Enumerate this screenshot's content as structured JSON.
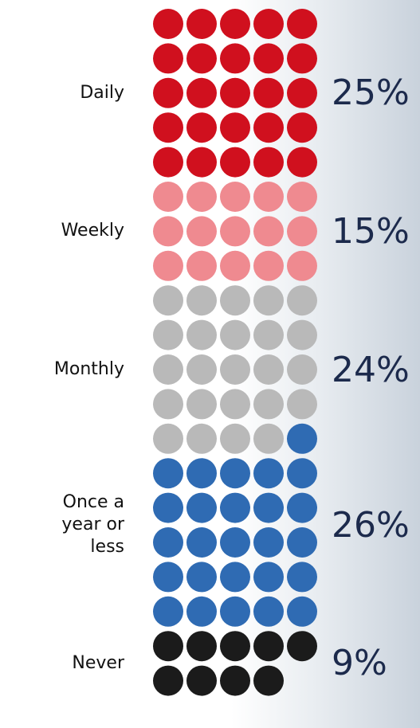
{
  "chart_data": {
    "type": "waffle",
    "categories": [
      "Daily",
      "Weekly",
      "Monthly",
      "Once a year or less",
      "Never"
    ],
    "values": [
      25,
      15,
      24,
      26,
      9
    ],
    "value_labels": [
      "25%",
      "15%",
      "24%",
      "26%",
      "9%"
    ],
    "colors": [
      "#d0101e",
      "#ef8a90",
      "#b9b9b9",
      "#2f6bb3",
      "#1b1b1b"
    ],
    "columns": 5
  }
}
